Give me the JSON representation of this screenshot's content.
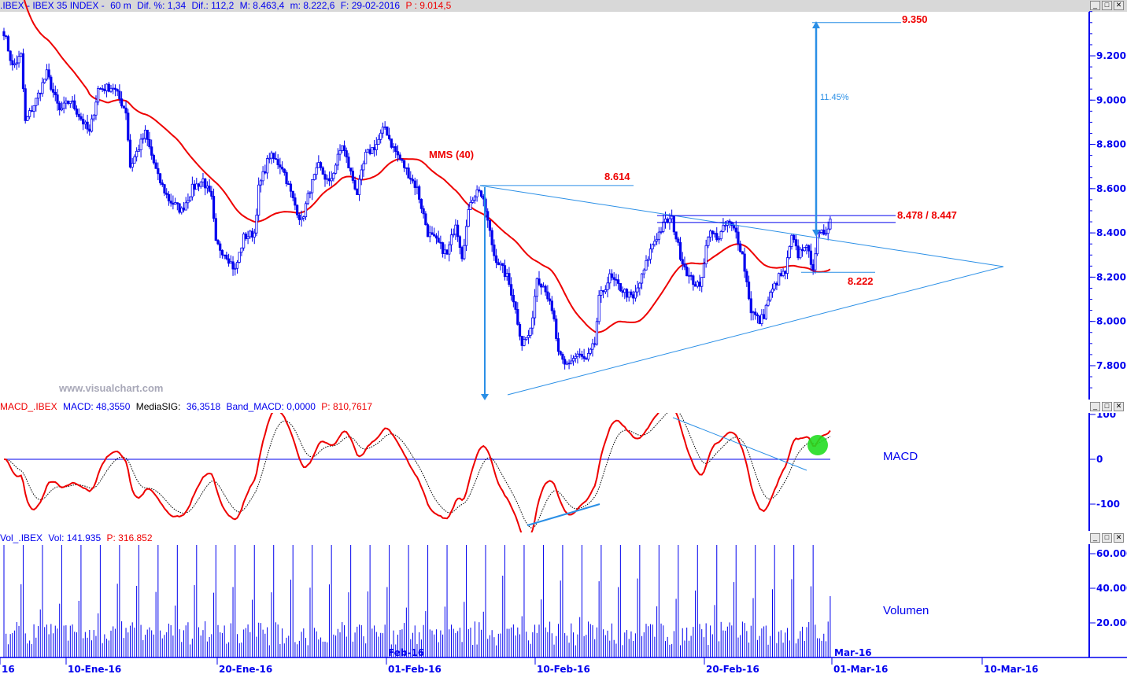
{
  "header": {
    "symbol": ".IBEX - IBEX 35 INDEX -",
    "timeframe": "60 m",
    "dif_pct": "Dif. %: 1,34",
    "dif": "Dif.: 112,2",
    "max": "M: 8.463,4",
    "min": "m: 8.222,6",
    "date": "F: 29-02-2016",
    "p": "P : 9.014,5"
  },
  "macd_header": {
    "name": "MACD_.IBEX",
    "macd": "MACD: 48,3550",
    "sig_label": "MediaSIG:",
    "sig": "36,3518",
    "band": "Band_MACD: 0,0000",
    "p": "P: 810,7617"
  },
  "vol_header": {
    "name": "Vol_.IBEX",
    "vol": "Vol: 141.935",
    "p": "P: 316.852"
  },
  "window_buttons": {
    "min": "_",
    "max": "□",
    "close": "✕"
  },
  "watermark": "www.visualchart.com",
  "colors": {
    "candle": "#0000ee",
    "ma": "#ee0000",
    "annot": "#2a8fe6",
    "label": "#ee0000",
    "signal": "#000000",
    "highlight": "#22dd22"
  },
  "chart_data": [
    {
      "type": "candlestick",
      "title": "IBEX 35 INDEX 60 m",
      "ylim": [
        7650,
        9400
      ],
      "yticks": [
        "9.200",
        "9.000",
        "8.800",
        "8.600",
        "8.400",
        "8.200",
        "8.000",
        "7.800"
      ],
      "ytick_values": [
        9200,
        9000,
        8800,
        8600,
        8400,
        8200,
        8000,
        7800
      ],
      "xticks": [
        "16",
        "10-Ene-16",
        "20-Ene-16",
        "01-Feb-16",
        "10-Feb-16",
        "20-Feb-16",
        "01-Mar-16",
        "10-Mar-16"
      ],
      "xtick_month_labels": [
        "Feb-16",
        "Mar-16"
      ],
      "close_path": [
        [
          0,
          9310
        ],
        [
          4,
          9150
        ],
        [
          8,
          9200
        ],
        [
          10,
          8900
        ],
        [
          15,
          9000
        ],
        [
          20,
          9120
        ],
        [
          26,
          8950
        ],
        [
          31,
          9000
        ],
        [
          40,
          8850
        ],
        [
          44,
          9050
        ],
        [
          51,
          9060
        ],
        [
          57,
          8950
        ],
        [
          59,
          8700
        ],
        [
          66,
          8850
        ],
        [
          72,
          8650
        ],
        [
          77,
          8550
        ],
        [
          83,
          8500
        ],
        [
          88,
          8600
        ],
        [
          93,
          8640
        ],
        [
          97,
          8550
        ],
        [
          99,
          8350
        ],
        [
          104,
          8300
        ],
        [
          108,
          8230
        ],
        [
          112,
          8380
        ],
        [
          117,
          8400
        ],
        [
          119,
          8600
        ],
        [
          124,
          8750
        ],
        [
          130,
          8700
        ],
        [
          135,
          8550
        ],
        [
          139,
          8450
        ],
        [
          143,
          8600
        ],
        [
          147,
          8700
        ],
        [
          152,
          8620
        ],
        [
          158,
          8800
        ],
        [
          161,
          8700
        ],
        [
          165,
          8580
        ],
        [
          169,
          8750
        ],
        [
          174,
          8800
        ],
        [
          178,
          8880
        ],
        [
          181,
          8800
        ],
        [
          187,
          8700
        ],
        [
          193,
          8600
        ],
        [
          198,
          8400
        ],
        [
          203,
          8350
        ],
        [
          207,
          8300
        ],
        [
          211,
          8450
        ],
        [
          214,
          8300
        ],
        [
          218,
          8550
        ],
        [
          222,
          8600
        ],
        [
          225,
          8500
        ],
        [
          229,
          8300
        ],
        [
          235,
          8200
        ],
        [
          238,
          8100
        ],
        [
          242,
          7900
        ],
        [
          246,
          7950
        ],
        [
          249,
          8200
        ],
        [
          253,
          8150
        ],
        [
          257,
          8000
        ],
        [
          259,
          7850
        ],
        [
          262,
          7800
        ],
        [
          268,
          7850
        ],
        [
          272,
          7820
        ],
        [
          276,
          7900
        ],
        [
          278,
          8100
        ],
        [
          283,
          8200
        ],
        [
          288,
          8150
        ],
        [
          294,
          8100
        ],
        [
          298,
          8200
        ],
        [
          303,
          8350
        ],
        [
          309,
          8450
        ],
        [
          312,
          8460
        ],
        [
          316,
          8300
        ],
        [
          320,
          8200
        ],
        [
          325,
          8150
        ],
        [
          329,
          8400
        ],
        [
          334,
          8380
        ],
        [
          338,
          8450
        ],
        [
          342,
          8400
        ],
        [
          345,
          8300
        ],
        [
          349,
          8050
        ],
        [
          353,
          8000
        ],
        [
          355,
          8030
        ],
        [
          357,
          8100
        ],
        [
          362,
          8200
        ],
        [
          365,
          8220
        ],
        [
          368,
          8380
        ],
        [
          371,
          8300
        ],
        [
          374,
          8350
        ],
        [
          378,
          8250
        ],
        [
          380,
          8380
        ],
        [
          384,
          8410
        ],
        [
          386,
          8463
        ]
      ],
      "indicator": {
        "name": "MMS (40)",
        "period": 40
      },
      "annotations": {
        "levels": [
          "8.614",
          "8.478 / 8.447",
          "8.222",
          "9.350"
        ],
        "level_values": [
          8614,
          8478,
          8447,
          8222,
          9350
        ],
        "target_pct": "11.45%"
      }
    },
    {
      "type": "line",
      "title": "MACD",
      "series": [
        {
          "name": "MACD"
        },
        {
          "name": "MediaSIG"
        },
        {
          "name": "Band_MACD",
          "value": 0
        }
      ],
      "yticks": [
        "100",
        "0",
        "-100"
      ],
      "ytick_values": [
        100,
        0,
        -100
      ],
      "ylim": [
        -150,
        110
      ]
    },
    {
      "type": "bar",
      "title": "Volumen",
      "yticks": [
        "60.000",
        "40.000",
        "20.000"
      ],
      "ytick_values": [
        60000,
        40000,
        20000
      ],
      "ylim": [
        0,
        65000
      ],
      "session_open_volume": 65000
    }
  ]
}
